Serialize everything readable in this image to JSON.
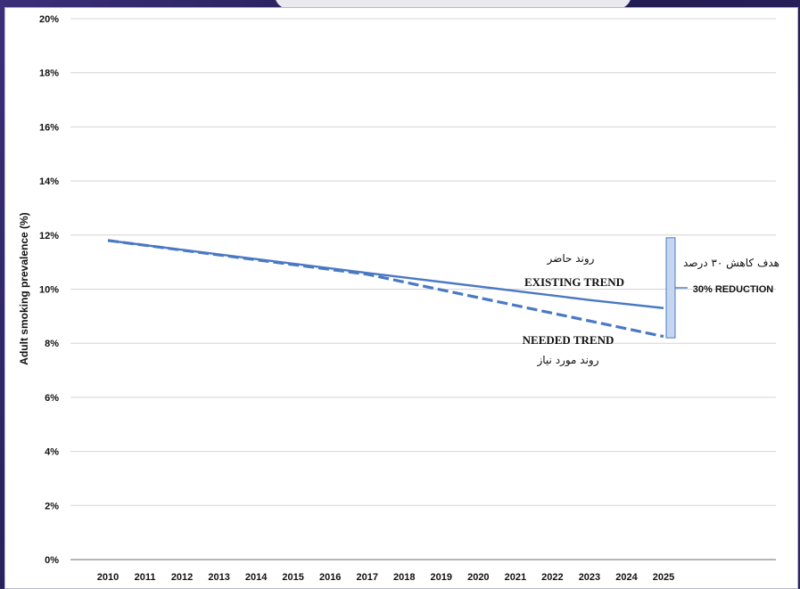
{
  "chart_data": {
    "type": "line",
    "ylabel": "Adult smoking prevalence (%)",
    "xlabel": "",
    "ylim": [
      0,
      20
    ],
    "y_ticks": [
      {
        "value": 0,
        "label": "0%"
      },
      {
        "value": 2,
        "label": "2%"
      },
      {
        "value": 4,
        "label": "4%"
      },
      {
        "value": 6,
        "label": "6%"
      },
      {
        "value": 8,
        "label": "8%"
      },
      {
        "value": 10,
        "label": "10%"
      },
      {
        "value": 12,
        "label": "12%"
      },
      {
        "value": 14,
        "label": "14%"
      },
      {
        "value": 16,
        "label": "16%"
      },
      {
        "value": 18,
        "label": "18%"
      },
      {
        "value": 20,
        "label": "20%"
      }
    ],
    "categories": [
      "2010",
      "2011",
      "2012",
      "2013",
      "2014",
      "2015",
      "2016",
      "2017",
      "2018",
      "2019",
      "2020",
      "2021",
      "2022",
      "2023",
      "2024",
      "2025"
    ],
    "grid": "horizontal",
    "series": [
      {
        "key": "existing",
        "style": "solid",
        "color": "#4a79c4",
        "x": [
          2010,
          2017,
          2023,
          2025
        ],
        "y": [
          11.8,
          10.6,
          9.6,
          9.3
        ]
      },
      {
        "key": "needed",
        "style": "dashed",
        "color": "#4a79c4",
        "x": [
          2010,
          2017,
          2025
        ],
        "y": [
          11.8,
          10.55,
          8.25
        ]
      }
    ],
    "annotations": {
      "existing_fa": "روند حاضر",
      "existing_en": "EXISTING TREND",
      "needed_en": "NEEDED TREND",
      "needed_fa": "روند مورد نیاز",
      "goal_fa": "هدف کاهش ۳۰ درصد",
      "reduction_en": "30% REDUCTION"
    },
    "reduction_bracket": {
      "x": 2025,
      "from": 8.2,
      "to": 11.9,
      "color": "#c5d7ef"
    }
  }
}
